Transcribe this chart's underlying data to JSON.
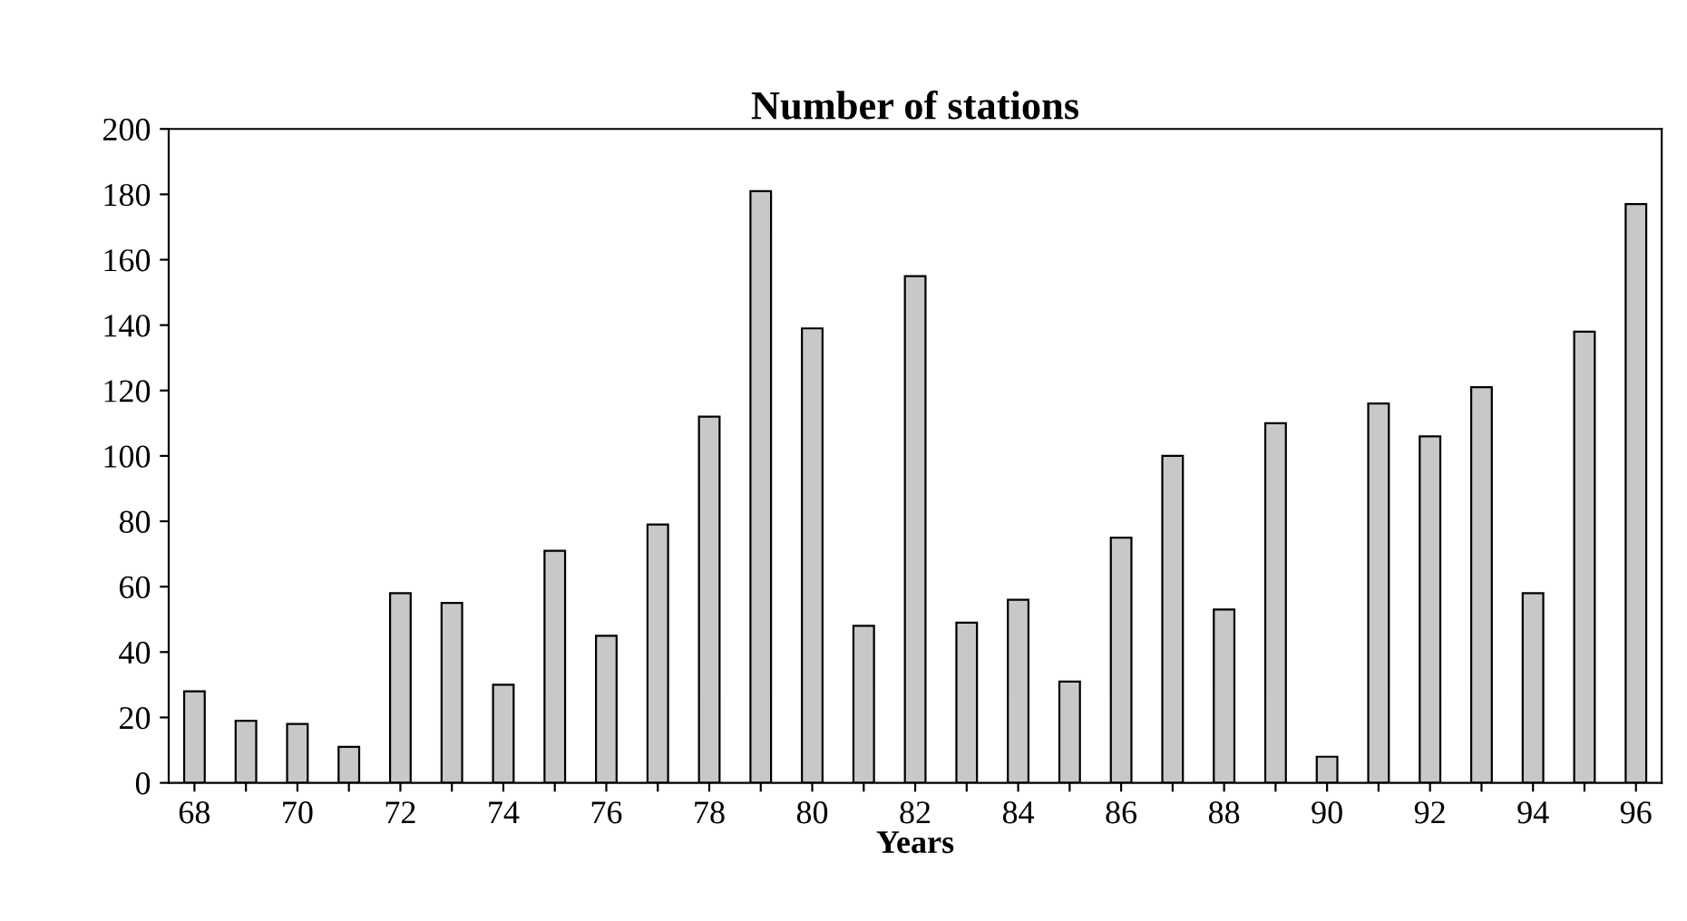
{
  "chart_data": {
    "type": "bar",
    "title": "Number of stations",
    "xlabel": "Years",
    "categories": [
      "68",
      null,
      "70",
      null,
      "72",
      null,
      "74",
      null,
      "76",
      null,
      "78",
      null,
      "80",
      null,
      "82",
      null,
      "84",
      null,
      "86",
      null,
      "88",
      null,
      "90",
      null,
      "92",
      null,
      "94",
      null,
      "96"
    ],
    "values": [
      28,
      19,
      18,
      11,
      58,
      55,
      30,
      71,
      45,
      79,
      112,
      181,
      139,
      48,
      155,
      49,
      56,
      31,
      75,
      100,
      53,
      110,
      8,
      116,
      106,
      121,
      58,
      138,
      177
    ],
    "color": "#c8c8c8",
    "ylim": [
      0,
      200
    ],
    "yticks": [
      0,
      20,
      40,
      60,
      80,
      100,
      120,
      140,
      160,
      180,
      200
    ],
    "grid": false
  }
}
